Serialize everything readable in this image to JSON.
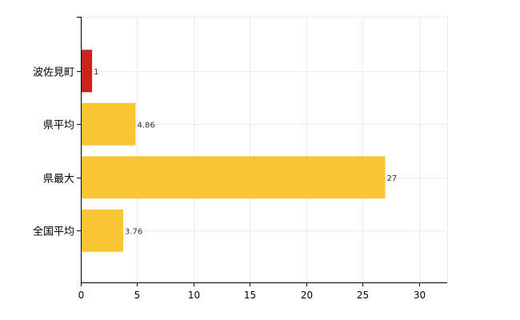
{
  "chart_data": {
    "type": "bar",
    "orientation": "horizontal",
    "categories": [
      "波佐見町",
      "県平均",
      "県最大",
      "全国平均"
    ],
    "values": [
      1,
      4.86,
      27,
      3.76
    ],
    "value_labels": [
      "1",
      "4.86",
      "27",
      "3.76"
    ],
    "bar_colors": [
      "#c8231c",
      "#f8c535",
      "#f8c535",
      "#f8c535"
    ],
    "xlim": [
      0,
      32.5
    ],
    "xticks": [
      0,
      5,
      10,
      15,
      20,
      25,
      30
    ],
    "xtick_labels": [
      "0",
      "5",
      "10",
      "15",
      "20",
      "25",
      "30"
    ],
    "title": "",
    "xlabel": "",
    "ylabel": "",
    "grid": true,
    "legend": "none"
  }
}
